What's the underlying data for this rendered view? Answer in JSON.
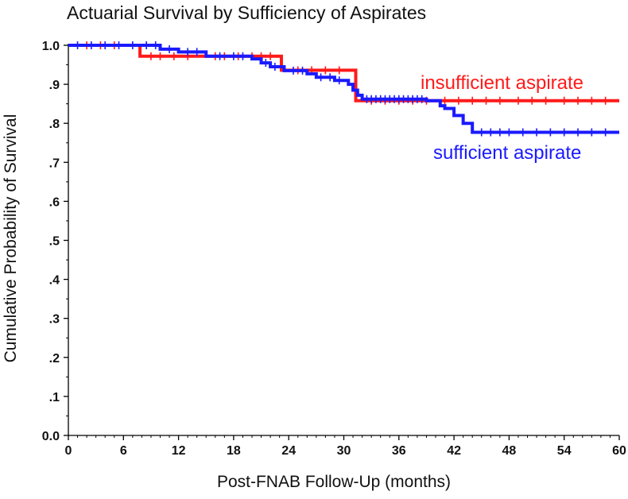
{
  "chart_data": {
    "type": "line",
    "title": "Actuarial Survival by Sufficiency of Aspirates",
    "xlabel": "Post-FNAB Follow-Up (months)",
    "ylabel": "Cumulative Probability of Survival",
    "xlim": [
      0,
      60
    ],
    "ylim": [
      0,
      1
    ],
    "xticks": [
      0,
      6,
      12,
      18,
      24,
      30,
      36,
      42,
      48,
      54,
      60
    ],
    "xtick_labels": [
      "0",
      "6",
      "12",
      "18",
      "24",
      "30",
      "36",
      "42",
      "48",
      "54",
      "60"
    ],
    "yticks": [
      0,
      0.1,
      0.2,
      0.3,
      0.4,
      0.5,
      0.6,
      0.7,
      0.8,
      0.9,
      1.0
    ],
    "ytick_labels": [
      "0.0",
      ".1",
      ".2",
      ".3",
      ".4",
      ".5",
      ".6",
      ".7",
      ".8",
      ".9",
      "1.0"
    ],
    "grid": false,
    "series": [
      {
        "name": "insufficient aspirate",
        "color": "#ff1a1a",
        "steps": [
          [
            0,
            1.0
          ],
          [
            7.8,
            0.972
          ],
          [
            23.2,
            0.936
          ],
          [
            31.3,
            0.858
          ],
          [
            60,
            0.858
          ]
        ],
        "censored": [
          2,
          3.5,
          5,
          9,
          10,
          11.5,
          13,
          16,
          17,
          18.5,
          20,
          21,
          22,
          25,
          26.5,
          28,
          29.5,
          33,
          34.5,
          36,
          37.5,
          39,
          41,
          42.5,
          44,
          45.5,
          47,
          49,
          50.5,
          52,
          54,
          55.5,
          57,
          58.5
        ]
      },
      {
        "name": "sufficient aspirate",
        "color": "#1a1aff",
        "steps": [
          [
            0,
            1.0
          ],
          [
            10,
            0.99
          ],
          [
            12,
            0.983
          ],
          [
            15,
            0.972
          ],
          [
            20,
            0.965
          ],
          [
            21,
            0.955
          ],
          [
            22,
            0.945
          ],
          [
            23.5,
            0.935
          ],
          [
            26,
            0.927
          ],
          [
            27,
            0.918
          ],
          [
            29,
            0.91
          ],
          [
            30.5,
            0.9
          ],
          [
            31,
            0.885
          ],
          [
            31.5,
            0.872
          ],
          [
            32,
            0.862
          ],
          [
            39,
            0.858
          ],
          [
            40.5,
            0.845
          ],
          [
            41,
            0.838
          ],
          [
            42,
            0.82
          ],
          [
            43,
            0.8
          ],
          [
            44,
            0.777
          ],
          [
            60,
            0.777
          ]
        ],
        "censored": [
          1,
          2.5,
          4,
          5.5,
          7,
          8.5,
          9.5,
          11,
          13,
          14,
          16.5,
          18,
          19,
          21.5,
          22.5,
          24.5,
          25.5,
          27.5,
          28.5,
          29.5,
          32.5,
          33,
          33.5,
          34,
          34.5,
          35,
          35.5,
          36,
          36.5,
          37,
          37.5,
          38,
          38.5,
          45,
          46,
          47,
          48,
          49.5,
          51,
          52.5,
          54,
          55.5,
          57,
          58.5
        ]
      }
    ]
  }
}
